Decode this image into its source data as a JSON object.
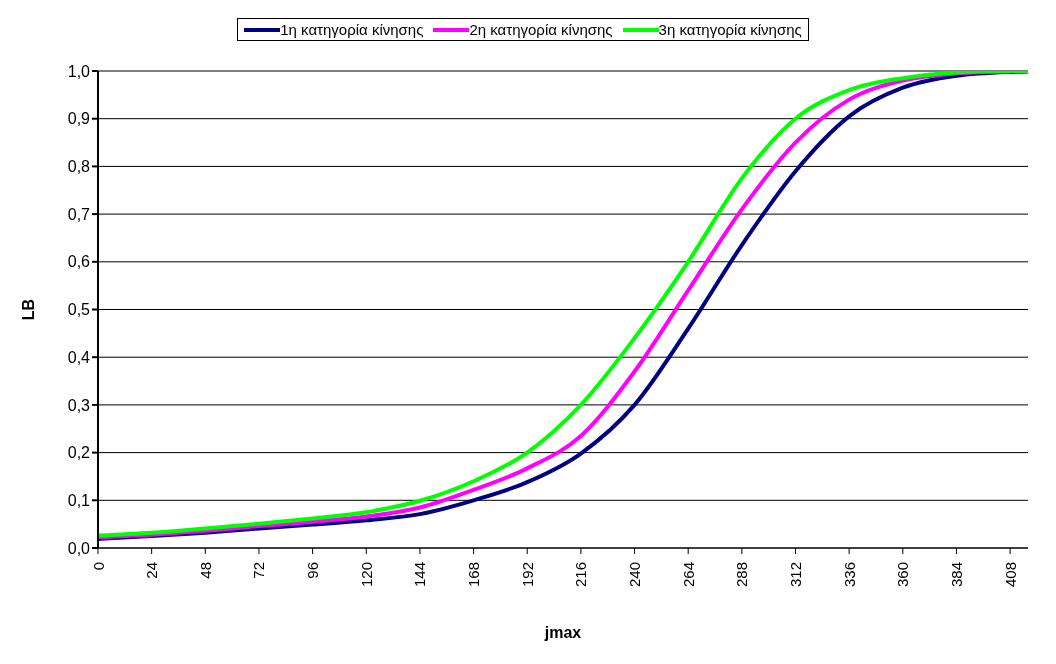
{
  "chart_data": {
    "type": "line",
    "xlabel": "jmax",
    "ylabel": "LB",
    "x": [
      0,
      24,
      48,
      72,
      96,
      120,
      144,
      168,
      192,
      216,
      240,
      264,
      288,
      312,
      336,
      360,
      384,
      408,
      416
    ],
    "series": [
      {
        "name": "1η κατηγορία κίνησης",
        "color": "#000080",
        "values": [
          0.019,
          0.025,
          0.032,
          0.041,
          0.049,
          0.058,
          0.071,
          0.1,
          0.138,
          0.198,
          0.3,
          0.46,
          0.635,
          0.79,
          0.905,
          0.965,
          0.99,
          0.998,
          0.999
        ]
      },
      {
        "name": "2η κατηγορία κίνησης",
        "color": "#ff00ff",
        "values": [
          0.022,
          0.028,
          0.036,
          0.046,
          0.055,
          0.066,
          0.085,
          0.122,
          0.167,
          0.235,
          0.37,
          0.54,
          0.71,
          0.85,
          0.94,
          0.98,
          0.995,
          0.999,
          null
        ]
      },
      {
        "name": "3η κατηγορία κίνησης",
        "color": "#00ff00",
        "values": [
          0.026,
          0.032,
          0.041,
          0.051,
          0.062,
          0.075,
          0.099,
          0.14,
          0.2,
          0.3,
          0.44,
          0.6,
          0.775,
          0.9,
          0.96,
          0.985,
          0.997,
          1.0,
          1.0
        ]
      }
    ],
    "xlim": [
      0,
      416
    ],
    "xticks": [
      0,
      24,
      48,
      72,
      96,
      120,
      144,
      168,
      192,
      216,
      240,
      264,
      288,
      312,
      336,
      360,
      384,
      408
    ],
    "ylim": [
      0,
      1
    ],
    "yticks": [
      {
        "value": 0,
        "label": "0,0"
      },
      {
        "value": 0.1,
        "label": "0,1"
      },
      {
        "value": 0.2,
        "label": "0,2"
      },
      {
        "value": 0.3,
        "label": "0,3"
      },
      {
        "value": 0.4,
        "label": "0,4"
      },
      {
        "value": 0.5,
        "label": "0,5"
      },
      {
        "value": 0.6,
        "label": "0,6"
      },
      {
        "value": 0.7,
        "label": "0,7"
      },
      {
        "value": 0.8,
        "label": "0,8"
      },
      {
        "value": 0.9,
        "label": "0,9"
      },
      {
        "value": 1,
        "label": "1,0"
      }
    ],
    "grid": "y",
    "legend": "top",
    "marker": "none",
    "line_style": "solid"
  }
}
